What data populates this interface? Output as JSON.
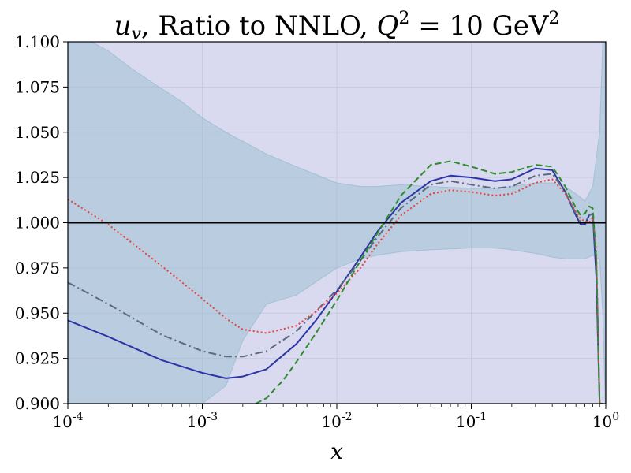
{
  "chart_data": {
    "type": "line",
    "title": "u_v, Ratio to NNLO, Q^2 = 10 GeV^2",
    "title_parts": {
      "pdf_symbol": "u",
      "pdf_subscript": "v",
      "middle": ", Ratio to NNLO, ",
      "q_symbol": "Q",
      "q_exp": "2",
      "equals": " = 10 GeV",
      "unit_exp": "2"
    },
    "xlabel": "x",
    "ylabel": "",
    "xscale": "log",
    "xlim": [
      0.0001,
      1
    ],
    "ylim": [
      0.9,
      1.1
    ],
    "grid": true,
    "x_ticks": [
      {
        "value": 0.0001,
        "base": "10",
        "exp": "-4"
      },
      {
        "value": 0.001,
        "base": "10",
        "exp": "-3"
      },
      {
        "value": 0.01,
        "base": "10",
        "exp": "-2"
      },
      {
        "value": 0.1,
        "base": "10",
        "exp": "-1"
      },
      {
        "value": 1,
        "base": "10",
        "exp": "0"
      }
    ],
    "y_ticks": [
      {
        "value": 0.9,
        "label": "0.900"
      },
      {
        "value": 0.925,
        "label": "0.925"
      },
      {
        "value": 0.95,
        "label": "0.950"
      },
      {
        "value": 0.975,
        "label": "0.975"
      },
      {
        "value": 1.0,
        "label": "1.000"
      },
      {
        "value": 1.025,
        "label": "1.025"
      },
      {
        "value": 1.05,
        "label": "1.050"
      },
      {
        "value": 1.075,
        "label": "1.075"
      },
      {
        "value": 1.1,
        "label": "1.100"
      }
    ],
    "reference_line": {
      "y": 1.0,
      "color": "#000000"
    },
    "bands": [
      {
        "name": "teal-uncertainty-band",
        "color": "#7ec8c0",
        "opacity": 0.38,
        "x": [
          0.0001,
          0.00015,
          0.0002,
          0.0003,
          0.0005,
          0.0007,
          0.001,
          0.0015,
          0.002,
          0.003,
          0.005,
          0.01,
          0.015,
          0.02,
          0.03,
          0.05,
          0.1,
          0.15,
          0.2,
          0.3,
          0.4,
          0.5,
          0.6,
          0.7,
          0.8,
          0.9,
          0.95,
          0.99
        ],
        "upper": [
          1.1,
          1.1,
          1.095,
          1.085,
          1.074,
          1.067,
          1.058,
          1.05,
          1.045,
          1.038,
          1.031,
          1.022,
          1.02,
          1.02,
          1.021,
          1.02,
          1.019,
          1.019,
          1.02,
          1.022,
          1.022,
          1.02,
          1.016,
          1.012,
          1.02,
          1.05,
          1.1,
          1.1
        ],
        "lower": [
          0.9,
          0.9,
          0.9,
          0.9,
          0.9,
          0.9,
          0.9,
          0.91,
          0.935,
          0.955,
          0.96,
          0.975,
          0.98,
          0.982,
          0.984,
          0.985,
          0.986,
          0.986,
          0.985,
          0.983,
          0.981,
          0.98,
          0.98,
          0.98,
          0.982,
          0.98,
          0.95,
          0.9
        ]
      },
      {
        "name": "purple-uncertainty-band",
        "color": "#9b9bd6",
        "opacity": 0.38,
        "x": [
          0.0001,
          0.00013,
          0.00015,
          0.0002,
          0.0003,
          0.0005,
          0.0007,
          0.001,
          0.0015,
          0.002,
          0.003,
          0.005,
          0.007,
          0.01,
          0.015,
          0.02,
          0.03,
          0.05,
          0.07,
          0.1,
          0.15,
          0.2,
          0.3,
          0.4,
          0.5,
          0.6,
          0.7,
          0.8,
          0.85,
          0.9,
          0.95,
          0.99
        ],
        "upper": [
          1.1,
          1.1,
          1.1,
          1.1,
          1.1,
          1.1,
          1.1,
          1.1,
          1.1,
          1.1,
          1.1,
          1.1,
          1.1,
          1.1,
          1.1,
          1.1,
          1.1,
          1.1,
          1.1,
          1.1,
          1.1,
          1.1,
          1.1,
          1.1,
          1.1,
          1.1,
          1.1,
          1.1,
          1.1,
          1.1,
          1.1,
          1.1
        ],
        "lower": [
          0.9,
          0.9,
          0.9,
          0.9,
          0.9,
          0.9,
          0.9,
          0.9,
          0.9,
          0.9,
          0.9,
          0.9,
          0.9,
          0.9,
          0.9,
          0.9,
          0.9,
          0.9,
          0.9,
          0.9,
          0.9,
          0.9,
          0.9,
          0.9,
          0.9,
          0.9,
          0.9,
          0.9,
          0.9,
          0.9,
          0.9,
          0.9
        ]
      }
    ],
    "series": [
      {
        "name": "solid-blue",
        "color": "#2b35a5",
        "dash": "",
        "width": 2,
        "x": [
          0.0001,
          0.0002,
          0.0005,
          0.001,
          0.0015,
          0.002,
          0.003,
          0.005,
          0.007,
          0.01,
          0.015,
          0.02,
          0.03,
          0.05,
          0.07,
          0.1,
          0.15,
          0.2,
          0.3,
          0.4,
          0.5,
          0.6,
          0.65,
          0.7,
          0.75,
          0.8,
          0.85,
          0.9,
          0.95
        ],
        "values": [
          0.946,
          0.937,
          0.924,
          0.917,
          0.914,
          0.915,
          0.919,
          0.933,
          0.946,
          0.962,
          0.981,
          0.995,
          1.011,
          1.023,
          1.026,
          1.025,
          1.023,
          1.024,
          1.03,
          1.029,
          1.017,
          1.004,
          0.999,
          0.999,
          1.004,
          1.005,
          0.97,
          0.9,
          0.9
        ]
      },
      {
        "name": "dash-dot-grey",
        "color": "#5b6b7f",
        "dash": "10,4,2,4",
        "width": 2,
        "x": [
          0.0001,
          0.0002,
          0.0005,
          0.001,
          0.0015,
          0.002,
          0.003,
          0.005,
          0.007,
          0.01,
          0.015,
          0.02,
          0.03,
          0.05,
          0.07,
          0.1,
          0.15,
          0.2,
          0.3,
          0.4,
          0.5,
          0.6,
          0.65,
          0.7,
          0.75,
          0.8,
          0.85,
          0.9,
          0.95
        ],
        "values": [
          0.967,
          0.955,
          0.938,
          0.929,
          0.926,
          0.926,
          0.929,
          0.94,
          0.951,
          0.963,
          0.979,
          0.992,
          1.008,
          1.021,
          1.023,
          1.021,
          1.019,
          1.02,
          1.026,
          1.027,
          1.017,
          1.005,
          1.0,
          1.0,
          1.004,
          1.005,
          0.98,
          0.9,
          0.9
        ]
      },
      {
        "name": "dotted-red",
        "color": "#e8423a",
        "dash": "2,3",
        "width": 2,
        "x": [
          0.0001,
          0.0002,
          0.0005,
          0.001,
          0.0015,
          0.002,
          0.003,
          0.005,
          0.007,
          0.01,
          0.015,
          0.02,
          0.03,
          0.05,
          0.07,
          0.1,
          0.15,
          0.2,
          0.3,
          0.4,
          0.5,
          0.6,
          0.65,
          0.7,
          0.75,
          0.8,
          0.85,
          0.9,
          0.95
        ],
        "values": [
          1.013,
          0.999,
          0.976,
          0.958,
          0.947,
          0.941,
          0.939,
          0.943,
          0.951,
          0.961,
          0.975,
          0.988,
          1.004,
          1.016,
          1.018,
          1.017,
          1.015,
          1.016,
          1.022,
          1.024,
          1.016,
          1.006,
          1.002,
          1.001,
          1.0,
          1.003,
          0.985,
          0.9,
          0.9
        ]
      },
      {
        "name": "dashed-green",
        "color": "#2e8b2e",
        "dash": "8,4",
        "width": 2,
        "x": [
          0.0025,
          0.003,
          0.004,
          0.005,
          0.007,
          0.01,
          0.015,
          0.02,
          0.03,
          0.05,
          0.07,
          0.1,
          0.15,
          0.2,
          0.3,
          0.4,
          0.5,
          0.6,
          0.65,
          0.7,
          0.75,
          0.8,
          0.85,
          0.9,
          0.95
        ],
        "values": [
          0.9,
          0.903,
          0.913,
          0.923,
          0.939,
          0.957,
          0.979,
          0.994,
          1.015,
          1.032,
          1.034,
          1.031,
          1.027,
          1.028,
          1.032,
          1.031,
          1.02,
          1.008,
          1.004,
          1.005,
          1.009,
          1.008,
          0.98,
          0.9,
          0.9
        ]
      }
    ]
  }
}
